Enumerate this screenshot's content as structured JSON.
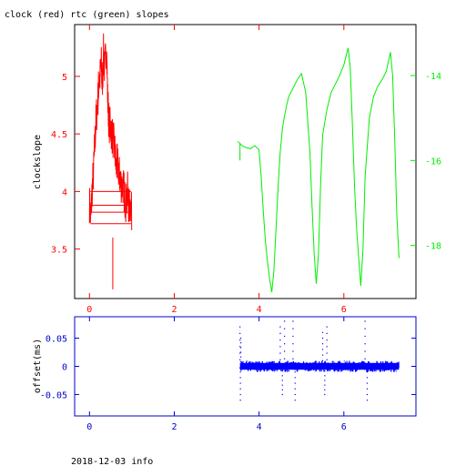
{
  "title": "clock (red) rtc (green) slopes",
  "footer": "2018-12-03 info",
  "colors": {
    "clock": "#ff0000",
    "rtc": "#00ee00",
    "offset": "#0000ff",
    "axis_bottom": "#0000cc",
    "frame": "#000000"
  },
  "chart_data": [
    {
      "type": "line",
      "panel": "top",
      "title": "clock (red) rtc (green) slopes",
      "ylabel": "clockslope",
      "xlim": [
        -0.35,
        7.7
      ],
      "x_ticks": [
        0,
        2,
        4,
        6
      ],
      "x_tick_labels": [
        "0",
        "2",
        "4",
        "6"
      ],
      "ylim": [
        3.07,
        5.45
      ],
      "y_ticks": [
        3.5,
        4,
        4.5,
        5
      ],
      "y_tick_labels": [
        "3.5",
        "4",
        "4.5",
        "5"
      ],
      "y2lim": [
        -19.25,
        -12.8
      ],
      "y2_ticks": [
        -14,
        -16,
        -18
      ],
      "y2_tick_labels": [
        "-14",
        "-16",
        "-18"
      ],
      "series": [
        {
          "axis": "left",
          "x": [
            0.0,
            0.03,
            0.06,
            0.1,
            0.13,
            0.16,
            0.2,
            0.22,
            0.25,
            0.28,
            0.3,
            0.33,
            0.36,
            0.4,
            0.43,
            0.46,
            0.5,
            0.53,
            0.56,
            0.6,
            0.63,
            0.66,
            0.7,
            0.73,
            0.76,
            0.8,
            0.83,
            0.86,
            0.9,
            0.93,
            0.96,
            1.0
          ],
          "y": [
            3.9,
            3.75,
            4.0,
            4.2,
            4.45,
            4.65,
            4.8,
            4.95,
            5.0,
            5.1,
            4.9,
            5.2,
            5.05,
            5.3,
            4.8,
            4.6,
            4.55,
            4.5,
            4.45,
            4.35,
            4.2,
            4.25,
            4.15,
            4.1,
            4.05,
            4.05,
            3.95,
            3.9,
            4.0,
            3.85,
            3.9,
            3.8
          ]
        },
        {
          "axis": "right",
          "x": [
            3.5,
            3.55,
            3.6,
            3.7,
            3.8,
            3.9,
            4.0,
            4.05,
            4.1,
            4.15,
            4.2,
            4.25,
            4.3,
            4.35,
            4.4,
            4.45,
            4.5,
            4.55,
            4.6,
            4.65,
            4.7,
            4.8,
            4.9,
            5.0,
            5.1,
            5.2,
            5.25,
            5.3,
            5.35,
            5.4,
            5.45,
            5.5,
            5.6,
            5.7,
            5.8,
            5.9,
            6.0,
            6.1,
            6.15,
            6.2,
            6.25,
            6.3,
            6.35,
            6.4,
            6.45,
            6.5,
            6.6,
            6.7,
            6.8,
            6.9,
            7.0,
            7.1,
            7.15,
            7.2,
            7.25,
            7.3
          ],
          "y": [
            -15.55,
            -15.6,
            -15.65,
            -15.7,
            -15.72,
            -15.65,
            -15.75,
            -16.4,
            -17.2,
            -17.9,
            -18.4,
            -18.8,
            -19.1,
            -18.6,
            -17.6,
            -16.6,
            -15.8,
            -15.25,
            -14.95,
            -14.7,
            -14.5,
            -14.3,
            -14.1,
            -13.95,
            -14.4,
            -15.8,
            -17.1,
            -18.2,
            -18.9,
            -18.2,
            -16.6,
            -15.4,
            -14.8,
            -14.4,
            -14.2,
            -14.0,
            -13.75,
            -13.35,
            -13.8,
            -15.1,
            -16.6,
            -17.6,
            -18.3,
            -18.95,
            -18.1,
            -16.4,
            -15.0,
            -14.5,
            -14.25,
            -14.1,
            -13.9,
            -13.45,
            -14.0,
            -15.5,
            -17.3,
            -18.3
          ]
        }
      ]
    },
    {
      "type": "scatter",
      "panel": "bottom",
      "ylabel": "offset(ms)",
      "xlim": [
        -0.35,
        7.7
      ],
      "x_ticks": [
        0,
        2,
        4,
        6
      ],
      "x_tick_labels": [
        "0",
        "2",
        "4",
        "6"
      ],
      "ylim": [
        -0.088,
        0.088
      ],
      "y_ticks": [
        0.05,
        0,
        -0.05
      ],
      "y_tick_labels": [
        "0.05",
        "0",
        "-0.05"
      ],
      "series": [
        {
          "x": [
            3.55,
            3.56,
            3.57,
            4.5,
            4.55,
            4.6,
            4.8,
            4.85,
            5.5,
            5.55,
            5.6,
            6.5,
            6.55
          ],
          "y": [
            0.07,
            -0.06,
            0.05,
            0.07,
            -0.05,
            0.08,
            0.08,
            -0.06,
            0.06,
            -0.05,
            0.07,
            0.08,
            -0.06
          ]
        }
      ]
    }
  ]
}
